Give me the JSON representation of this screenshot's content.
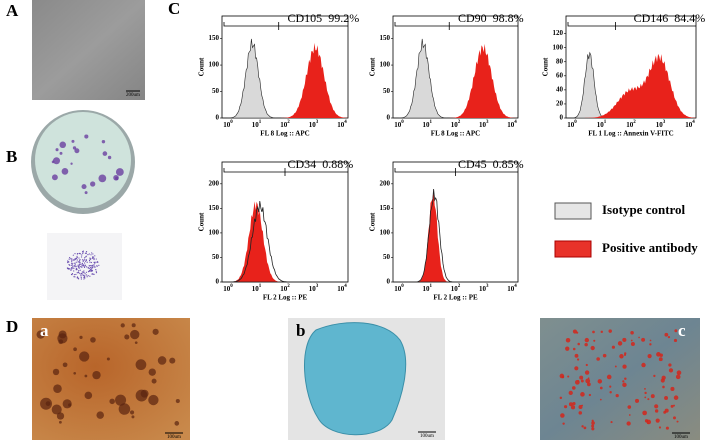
{
  "panels": {
    "A": {
      "label": "A",
      "scale_bar": "200um"
    },
    "B": {
      "label": "B"
    },
    "C": {
      "label": "C",
      "histograms": [
        {
          "marker": "CD105",
          "percent": "99.2%",
          "x_label": "FL 8 Log :: APC",
          "y_label": "Count",
          "yticks": [
            0,
            50,
            100,
            150
          ],
          "xtick_base": "10",
          "xtick_exps": [
            "0",
            "1",
            "2",
            "3",
            "4"
          ]
        },
        {
          "marker": "CD90",
          "percent": "98.8%",
          "x_label": "FL 8 Log :: APC",
          "y_label": "Count",
          "yticks": [
            0,
            50,
            100,
            150
          ],
          "xtick_base": "10",
          "xtick_exps": [
            "0",
            "1",
            "2",
            "3",
            "4"
          ]
        },
        {
          "marker": "CD146",
          "percent": "84.4%",
          "x_label": "FL 1 Log :: Annexin V-FITC",
          "y_label": "Count",
          "yticks": [
            0,
            20,
            40,
            60,
            80,
            100,
            120
          ],
          "xtick_base": "10",
          "xtick_exps": [
            "0",
            "1",
            "2",
            "3",
            "4"
          ]
        },
        {
          "marker": "CD34",
          "percent": "0.88%",
          "x_label": "FL 2 Log :: PE",
          "y_label": "Count",
          "yticks": [
            0,
            50,
            100,
            150,
            200
          ],
          "xtick_base": "10",
          "xtick_exps": [
            "0",
            "1",
            "2",
            "3",
            "4"
          ]
        },
        {
          "marker": "CD45",
          "percent": "0.85%",
          "x_label": "FL 2 Log :: PE",
          "y_label": "Count",
          "yticks": [
            0,
            50,
            100,
            150,
            200
          ],
          "xtick_base": "10",
          "xtick_exps": [
            "0",
            "1",
            "2",
            "3",
            "4"
          ]
        }
      ]
    },
    "D": {
      "label": "D",
      "images": [
        {
          "label": "a",
          "scale_bar": "100um"
        },
        {
          "label": "b",
          "scale_bar": "100um"
        },
        {
          "label": "c",
          "scale_bar": "100um"
        }
      ]
    }
  },
  "legend": [
    "Isotype control",
    "Positive antibody"
  ]
}
